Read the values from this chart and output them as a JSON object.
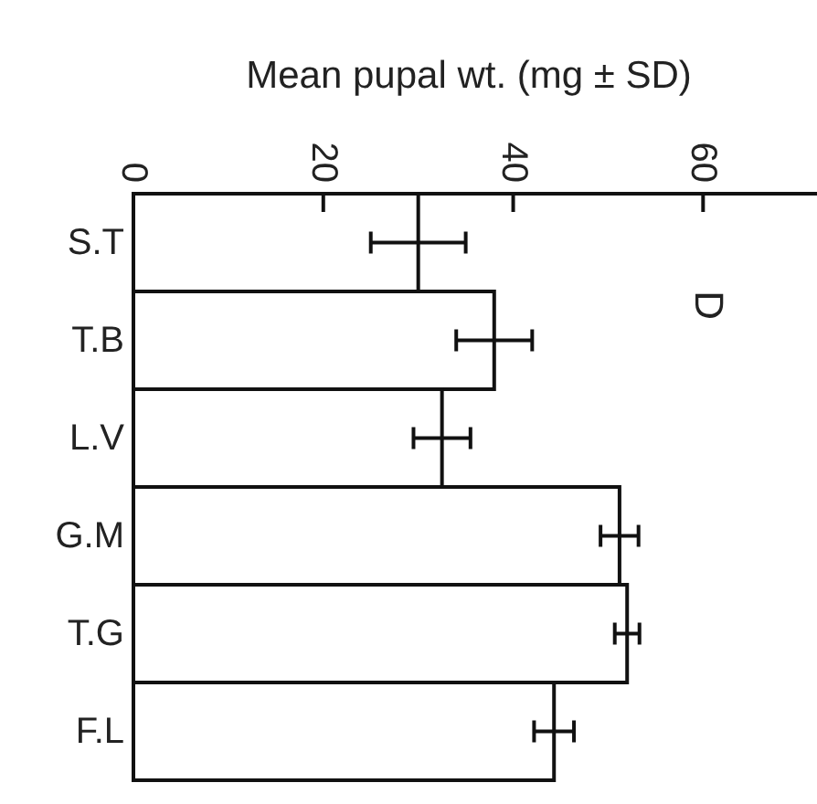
{
  "chart_data": {
    "type": "bar",
    "orientation": "horizontal",
    "xlabel": "Mean  pupal wt. (mg ± SD)",
    "categories": [
      "S.T",
      "T.B",
      "L.V",
      "G.M",
      "T.G",
      "F.L"
    ],
    "values": [
      30,
      38,
      32.5,
      51.2,
      52,
      44.3
    ],
    "errors": [
      5,
      4,
      3,
      2,
      1.3,
      2.1
    ],
    "color": "#ffffff",
    "xlim": [
      0,
      72
    ],
    "xticks": [
      0,
      20,
      40,
      60
    ],
    "grid": false,
    "annotations": [
      "D"
    ]
  }
}
